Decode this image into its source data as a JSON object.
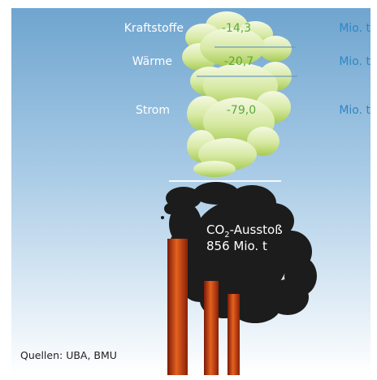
{
  "rows": [
    {
      "label": "Kraftstoffe",
      "value": "-14,3",
      "unit": "Mio. t"
    },
    {
      "label": "Wärme",
      "value": "-20,7",
      "unit": "Mio. t"
    },
    {
      "label": "Strom",
      "value": "-79,0",
      "unit": "Mio. t"
    }
  ],
  "emission": {
    "co_prefix": "CO",
    "subscript": "2",
    "suffix": "-Ausstoß",
    "amount": "856 Mio. t"
  },
  "source": "Quellen: UBA, BMU",
  "colors": {
    "sky_top": "#6fa5cf",
    "sky_bottom": "#ffffff",
    "clean_cloud": "#eef6d4",
    "clean_cloud_shade": "#9cc44a",
    "smoke": "#1c1c1c",
    "value_green": "#5aaa3a",
    "unit_blue": "#2f86c4",
    "chimney_light": "#e4621f",
    "chimney_dark": "#7a1808"
  }
}
